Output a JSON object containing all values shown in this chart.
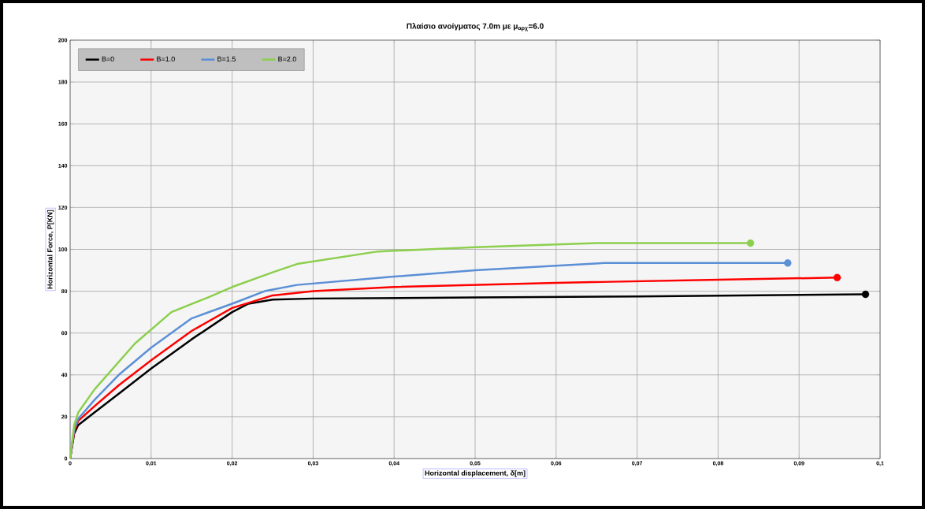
{
  "chart_data": {
    "type": "line",
    "title": "Πλαίσιο ανοίγματος 7.0m με μ$_{αρχ}$=6.0",
    "xlabel": "Horizontal displacement, δ[m]",
    "ylabel": "Horizontal Force, P[KN]",
    "xlim": [
      0,
      0.1
    ],
    "ylim": [
      0,
      200
    ],
    "xticks": [
      0,
      {
        "value": 0.01,
        "label": "0,01"
      },
      {
        "value": 0.02,
        "label": "0,02"
      },
      {
        "value": 0.03,
        "label": "0,03"
      },
      {
        "value": 0.04,
        "label": "0,04"
      },
      {
        "value": 0.05,
        "label": "0,05"
      },
      {
        "value": 0.06,
        "label": "0,06"
      },
      {
        "value": 0.07,
        "label": "0,07"
      },
      {
        "value": 0.08,
        "label": "0,08"
      },
      {
        "value": 0.09,
        "label": "0,09"
      },
      {
        "value": 0.1,
        "label": "0,1"
      }
    ],
    "yticks": [
      0,
      20,
      40,
      60,
      80,
      100,
      120,
      140,
      160,
      180,
      200
    ],
    "grid": true,
    "legend": "top left",
    "line_style": "solid",
    "series": [
      {
        "name": "B=0",
        "color": "#000000",
        "x": [
          0,
          0.0005,
          0.001,
          0.003,
          0.006,
          0.01,
          0.015,
          0.02,
          0.022,
          0.025,
          0.03,
          0.05,
          0.07,
          0.0982
        ],
        "values": [
          0,
          12,
          16,
          22,
          31,
          43,
          57,
          70,
          74,
          76,
          76.5,
          77,
          77.5,
          78.5
        ]
      },
      {
        "name": "B=1.0",
        "color": "#ff0000",
        "x": [
          0,
          0.0005,
          0.001,
          0.003,
          0.006,
          0.01,
          0.015,
          0.02,
          0.025,
          0.03,
          0.04,
          0.06,
          0.08,
          0.0947
        ],
        "values": [
          0,
          13,
          18,
          25,
          35,
          47,
          61,
          72,
          78,
          80,
          82,
          84,
          85.5,
          86.5
        ]
      },
      {
        "name": "B=1.5",
        "color": "#5b8fd6",
        "x": [
          0,
          0.0005,
          0.001,
          0.003,
          0.006,
          0.01,
          0.015,
          0.02,
          0.024,
          0.028,
          0.04,
          0.05,
          0.066,
          0.0886
        ],
        "values": [
          0,
          14,
          19,
          28,
          40,
          53,
          67,
          74,
          80,
          83,
          87,
          90,
          93.5,
          93.5
        ]
      },
      {
        "name": "B=2.0",
        "color": "#8ccf4d",
        "x": [
          0,
          0.0005,
          0.001,
          0.003,
          0.008,
          0.0125,
          0.017,
          0.02,
          0.025,
          0.028,
          0.038,
          0.05,
          0.065,
          0.084
        ],
        "values": [
          0,
          16,
          22,
          33,
          55,
          70,
          77,
          82,
          89,
          93,
          99,
          101,
          103,
          103
        ]
      },
      {
        "type": "scatter",
        "marker": "circle",
        "color": "#000000",
        "x": [
          0.0982
        ],
        "values": [
          78.5
        ]
      },
      {
        "type": "scatter",
        "marker": "circle",
        "color": "#ff0000",
        "x": [
          0.0947
        ],
        "values": [
          86.5
        ]
      },
      {
        "type": "scatter",
        "marker": "circle",
        "color": "#5b8fd6",
        "x": [
          0.0886
        ],
        "values": [
          93.5
        ]
      },
      {
        "type": "scatter",
        "marker": "circle",
        "color": "#8ccf4d",
        "x": [
          0.084
        ],
        "values": [
          103
        ]
      }
    ]
  }
}
